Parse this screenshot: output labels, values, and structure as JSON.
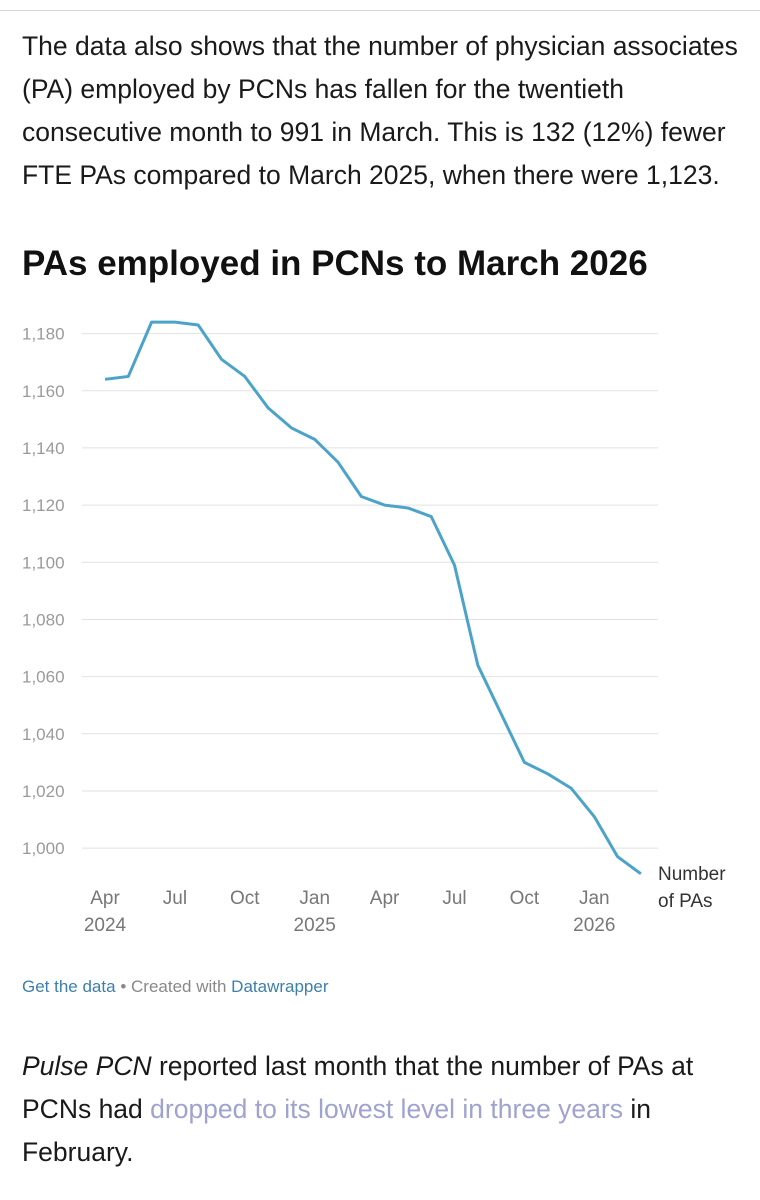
{
  "paragraphs": [
    {
      "text": "The data also shows that the number of physician associates (PA) employed by PCNs has fallen for the twentieth consecutive month to 991 in March. This is 132 (12%) fewer FTE PAs compared to March 2025, when there were 1,123."
    },
    {
      "italic": "Pulse PCN",
      "before_link": " reported last month that the number of PAs at PCNs had ",
      "link": "dropped to its lowest level in three years",
      "after_link": " in February."
    }
  ],
  "footer": {
    "get_data": "Get the data",
    "separator": "•",
    "created_with": "Created with",
    "tool": "Datawrapper"
  },
  "chart_data": {
    "type": "line",
    "title": "PAs employed in PCNs to March 2026",
    "categories": [
      "Apr 2024",
      null,
      null,
      "Jul",
      null,
      null,
      "Oct",
      null,
      null,
      "Jan 2025",
      null,
      null,
      "Apr",
      null,
      null,
      "Jul",
      null,
      null,
      "Oct",
      null,
      null,
      "Jan 2026",
      null,
      null
    ],
    "series": [
      {
        "name": "Number of PAs",
        "color": "#4ca3c9",
        "values": [
          1164,
          1165,
          1184,
          1184,
          1183,
          1171,
          1165,
          1154,
          1147,
          1143,
          1135,
          1123,
          1120,
          1119,
          1116,
          1099,
          1064,
          1047,
          1030,
          1026,
          1021,
          1011,
          997,
          991
        ]
      }
    ],
    "ylim": [
      985,
      1190
    ],
    "yticks": [
      {
        "value": 1000,
        "label": "1,000"
      },
      {
        "value": 1020,
        "label": "1,020"
      },
      {
        "value": 1040,
        "label": "1,040"
      },
      {
        "value": 1060,
        "label": "1,060"
      },
      {
        "value": 1080,
        "label": "1,080"
      },
      {
        "value": 1100,
        "label": "1,100"
      },
      {
        "value": 1120,
        "label": "1,120"
      },
      {
        "value": 1140,
        "label": "1,140"
      },
      {
        "value": 1160,
        "label": "1,160"
      },
      {
        "value": 1180,
        "label": "1,180"
      }
    ],
    "grid": true
  }
}
